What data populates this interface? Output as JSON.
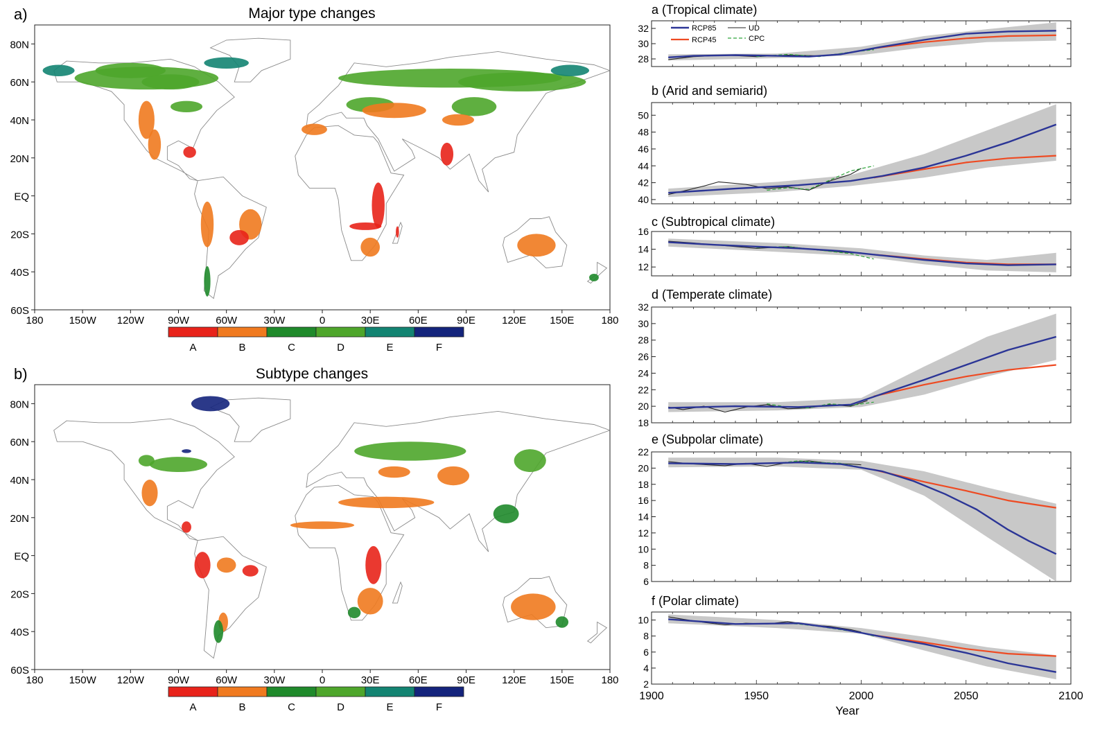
{
  "maps": [
    {
      "panel_label": "a)",
      "title": "Major type changes",
      "lat_labels": [
        "80N",
        "60N",
        "40N",
        "20N",
        "EQ",
        "20S",
        "40S",
        "60S"
      ],
      "lon_labels": [
        "180",
        "150W",
        "120W",
        "90W",
        "60W",
        "30W",
        "0",
        "30E",
        "60E",
        "90E",
        "120E",
        "150E",
        "180"
      ],
      "legend": [
        {
          "label": "A",
          "color": "#e8231a"
        },
        {
          "label": "B",
          "color": "#f07a1f"
        },
        {
          "label": "C",
          "color": "#1f8a2b"
        },
        {
          "label": "D",
          "color": "#4ea62b"
        },
        {
          "label": "E",
          "color": "#138472"
        },
        {
          "label": "F",
          "color": "#14247c"
        }
      ]
    },
    {
      "panel_label": "b)",
      "title": "Subtype changes",
      "lat_labels": [
        "80N",
        "60N",
        "40N",
        "20N",
        "EQ",
        "20S",
        "40S",
        "60S"
      ],
      "lon_labels": [
        "180",
        "150W",
        "120W",
        "90W",
        "60W",
        "30W",
        "0",
        "30E",
        "60E",
        "90E",
        "120E",
        "150E",
        "180"
      ],
      "legend": [
        {
          "label": "A",
          "color": "#e8231a"
        },
        {
          "label": "B",
          "color": "#f07a1f"
        },
        {
          "label": "C",
          "color": "#1f8a2b"
        },
        {
          "label": "D",
          "color": "#4ea62b"
        },
        {
          "label": "E",
          "color": "#138472"
        },
        {
          "label": "F",
          "color": "#14247c"
        }
      ]
    }
  ],
  "colors": {
    "rcp85": "#2b3596",
    "rcp45": "#ee4a22",
    "ud": "#222222",
    "cpc": "#2ea33a",
    "band": "#c8c8c8"
  },
  "chart_data": [
    {
      "type": "line",
      "title": "a (Tropical climate)",
      "xlim": [
        1900,
        2100
      ],
      "ylim": [
        27,
        33
      ],
      "yticks": [
        28,
        30,
        32
      ],
      "legend": [
        "RCP85",
        "RCP45",
        "UD",
        "CPC"
      ],
      "series": [
        {
          "name": "RCP85",
          "x": [
            1908,
            1920,
            1940,
            1960,
            1975,
            1990,
            2000,
            2010,
            2030,
            2050,
            2070,
            2093
          ],
          "y": [
            28.2,
            28.4,
            28.5,
            28.4,
            28.3,
            28.6,
            29.1,
            29.6,
            30.5,
            31.3,
            31.6,
            31.7
          ]
        },
        {
          "name": "RCP45",
          "x": [
            2006,
            2030,
            2050,
            2070,
            2093
          ],
          "y": [
            29.4,
            30.2,
            30.7,
            31.0,
            31.1
          ]
        },
        {
          "name": "UD",
          "x": [
            1908,
            1920,
            1935,
            1950,
            1965,
            1980,
            1995,
            2000,
            2006
          ],
          "y": [
            27.9,
            28.3,
            28.5,
            28.3,
            28.5,
            28.4,
            28.8,
            29.1,
            29.3
          ]
        },
        {
          "name": "CPC",
          "x": [
            1950,
            1965,
            1980,
            1995,
            2006
          ],
          "y": [
            28.3,
            28.6,
            28.3,
            28.9,
            29.2
          ]
        },
        {
          "name": "band",
          "x": [
            1908,
            1960,
            2000,
            2030,
            2060,
            2093
          ],
          "lower": [
            27.8,
            28.1,
            28.5,
            29.5,
            30.2,
            30.4
          ],
          "upper": [
            28.6,
            28.7,
            29.6,
            31.0,
            31.9,
            32.8
          ]
        }
      ]
    },
    {
      "type": "line",
      "title": "b (Arid and semiarid)",
      "xlim": [
        1900,
        2100
      ],
      "ylim": [
        39.5,
        51.5
      ],
      "yticks": [
        40,
        42,
        44,
        46,
        48,
        50
      ],
      "series": [
        {
          "name": "RCP85",
          "x": [
            1908,
            1940,
            1970,
            1995,
            2010,
            2030,
            2050,
            2070,
            2093
          ],
          "y": [
            40.8,
            41.3,
            41.7,
            42.2,
            42.8,
            43.8,
            45.2,
            46.8,
            48.9
          ]
        },
        {
          "name": "RCP45",
          "x": [
            2006,
            2030,
            2050,
            2070,
            2093
          ],
          "y": [
            42.6,
            43.6,
            44.4,
            44.9,
            45.2
          ]
        },
        {
          "name": "UD",
          "x": [
            1908,
            1915,
            1925,
            1932,
            1945,
            1955,
            1965,
            1975,
            1985,
            1995,
            2000
          ],
          "y": [
            40.6,
            41.0,
            41.6,
            42.1,
            41.8,
            41.3,
            41.5,
            41.1,
            42.2,
            43.0,
            43.7
          ]
        },
        {
          "name": "CPC",
          "x": [
            1955,
            1965,
            1975,
            1985,
            1995,
            2006
          ],
          "y": [
            41.1,
            41.4,
            41.2,
            42.3,
            43.4,
            44.0
          ]
        },
        {
          "name": "band",
          "x": [
            1908,
            1960,
            1995,
            2030,
            2060,
            2093
          ],
          "lower": [
            40.3,
            40.9,
            41.6,
            42.6,
            43.8,
            44.6
          ],
          "upper": [
            41.3,
            42.1,
            42.9,
            45.4,
            48.2,
            51.3
          ]
        }
      ]
    },
    {
      "type": "line",
      "title": "c (Subtropical climate)",
      "xlim": [
        1900,
        2100
      ],
      "ylim": [
        11,
        16
      ],
      "yticks": [
        12,
        14,
        16
      ],
      "series": [
        {
          "name": "RCP85",
          "x": [
            1908,
            1930,
            1950,
            1970,
            1990,
            2010,
            2030,
            2050,
            2070,
            2093
          ],
          "y": [
            14.8,
            14.5,
            14.3,
            14.1,
            13.8,
            13.3,
            12.8,
            12.4,
            12.2,
            12.3
          ]
        },
        {
          "name": "RCP45",
          "x": [
            2006,
            2030,
            2050,
            2070,
            2093
          ],
          "y": [
            13.4,
            12.9,
            12.5,
            12.3,
            12.3
          ]
        },
        {
          "name": "UD",
          "x": [
            1908,
            1920,
            1935,
            1950,
            1965,
            1980,
            1995,
            2000
          ],
          "y": [
            14.9,
            14.7,
            14.4,
            14.1,
            14.3,
            13.9,
            13.6,
            13.6
          ]
        },
        {
          "name": "CPC",
          "x": [
            1950,
            1965,
            1980,
            1995,
            2006
          ],
          "y": [
            14.2,
            14.3,
            13.9,
            13.5,
            12.9
          ]
        },
        {
          "name": "band",
          "x": [
            1908,
            1960,
            2000,
            2030,
            2060,
            2093
          ],
          "lower": [
            14.3,
            13.7,
            13.2,
            12.3,
            11.6,
            11.4
          ],
          "upper": [
            15.2,
            14.7,
            14.1,
            13.3,
            12.8,
            13.6
          ]
        }
      ]
    },
    {
      "type": "line",
      "title": "d (Temperate climate)",
      "xlim": [
        1900,
        2100
      ],
      "ylim": [
        18,
        32
      ],
      "yticks": [
        18,
        20,
        22,
        24,
        26,
        28,
        30,
        32
      ],
      "series": [
        {
          "name": "RCP85",
          "x": [
            1908,
            1940,
            1970,
            1995,
            2010,
            2030,
            2050,
            2070,
            2093
          ],
          "y": [
            19.8,
            20.0,
            19.9,
            20.2,
            21.5,
            23.2,
            25.0,
            26.8,
            28.4
          ]
        },
        {
          "name": "RCP45",
          "x": [
            2006,
            2030,
            2050,
            2070,
            2093
          ],
          "y": [
            21.2,
            22.6,
            23.6,
            24.4,
            25.0
          ]
        },
        {
          "name": "UD",
          "x": [
            1908,
            1915,
            1925,
            1935,
            1945,
            1955,
            1965,
            1975,
            1985,
            1995,
            2003
          ],
          "y": [
            19.9,
            19.6,
            20.0,
            19.3,
            19.9,
            20.2,
            19.7,
            19.8,
            20.2,
            20.0,
            20.7
          ]
        },
        {
          "name": "CPC",
          "x": [
            1955,
            1965,
            1975,
            1985,
            1995,
            2006
          ],
          "y": [
            20.3,
            19.9,
            19.8,
            20.3,
            20.1,
            20.5
          ]
        },
        {
          "name": "band",
          "x": [
            1908,
            1960,
            2000,
            2030,
            2060,
            2093
          ],
          "lower": [
            19.3,
            19.5,
            19.9,
            21.4,
            23.6,
            25.6
          ],
          "upper": [
            20.5,
            20.5,
            21.0,
            24.8,
            28.4,
            31.2
          ]
        }
      ]
    },
    {
      "type": "line",
      "title": "e (Subpolar climate)",
      "xlim": [
        1900,
        2100
      ],
      "ylim": [
        6,
        22
      ],
      "yticks": [
        6,
        8,
        10,
        12,
        14,
        16,
        18,
        20,
        22
      ],
      "series": [
        {
          "name": "RCP85",
          "x": [
            1908,
            1940,
            1970,
            1990,
            2010,
            2025,
            2040,
            2055,
            2070,
            2080,
            2093
          ],
          "y": [
            20.6,
            20.5,
            20.7,
            20.5,
            19.6,
            18.4,
            16.8,
            14.9,
            12.4,
            11.0,
            9.4
          ]
        },
        {
          "name": "RCP45",
          "x": [
            2006,
            2030,
            2050,
            2070,
            2093
          ],
          "y": [
            19.8,
            18.3,
            17.2,
            16.0,
            15.1
          ]
        },
        {
          "name": "UD",
          "x": [
            1908,
            1920,
            1935,
            1945,
            1955,
            1965,
            1975,
            1985,
            1995,
            2000
          ],
          "y": [
            20.8,
            20.5,
            20.3,
            20.6,
            20.2,
            20.7,
            20.9,
            20.6,
            20.5,
            20.4
          ]
        },
        {
          "name": "CPC",
          "x": [
            1960,
            1970,
            1980,
            1990,
            2000,
            2006
          ],
          "y": [
            20.6,
            20.9,
            20.7,
            20.6,
            20.1,
            19.8
          ]
        },
        {
          "name": "band",
          "x": [
            1908,
            1960,
            2000,
            2030,
            2060,
            2093
          ],
          "lower": [
            20.1,
            20.2,
            19.8,
            16.6,
            11.5,
            6.0
          ],
          "upper": [
            21.3,
            21.3,
            20.9,
            19.6,
            17.6,
            15.6
          ]
        }
      ]
    },
    {
      "type": "line",
      "title": "f (Polar climate)",
      "xlim": [
        1900,
        2100
      ],
      "ylim": [
        2,
        11
      ],
      "yticks": [
        2,
        4,
        6,
        8,
        10
      ],
      "series": [
        {
          "name": "RCP85",
          "x": [
            1908,
            1940,
            1970,
            1990,
            2010,
            2030,
            2050,
            2070,
            2093
          ],
          "y": [
            10.1,
            9.5,
            9.6,
            8.9,
            7.9,
            7.0,
            5.9,
            4.6,
            3.5
          ]
        },
        {
          "name": "RCP45",
          "x": [
            2006,
            2030,
            2050,
            2070,
            2093
          ],
          "y": [
            8.1,
            7.2,
            6.4,
            5.8,
            5.5
          ]
        },
        {
          "name": "UD",
          "x": [
            1908,
            1915,
            1925,
            1935,
            1945,
            1955,
            1965,
            1975,
            1985,
            1995,
            2000
          ],
          "y": [
            10.4,
            10.1,
            9.7,
            9.4,
            9.6,
            9.5,
            9.8,
            9.4,
            9.2,
            8.8,
            8.5
          ]
        },
        {
          "name": "CPC",
          "x": [
            1960,
            1970,
            1980,
            1990,
            2000,
            2006
          ],
          "y": [
            9.6,
            9.5,
            9.2,
            8.8,
            8.4,
            8.0
          ]
        },
        {
          "name": "band",
          "x": [
            1908,
            1960,
            2000,
            2030,
            2060,
            2093
          ],
          "lower": [
            9.6,
            9.0,
            8.3,
            6.2,
            4.2,
            2.6
          ],
          "upper": [
            10.7,
            10.0,
            9.0,
            7.9,
            6.6,
            5.6
          ]
        }
      ]
    }
  ],
  "x_axis": {
    "ticks": [
      1900,
      1950,
      2000,
      2050,
      2100
    ],
    "label": "Year"
  }
}
